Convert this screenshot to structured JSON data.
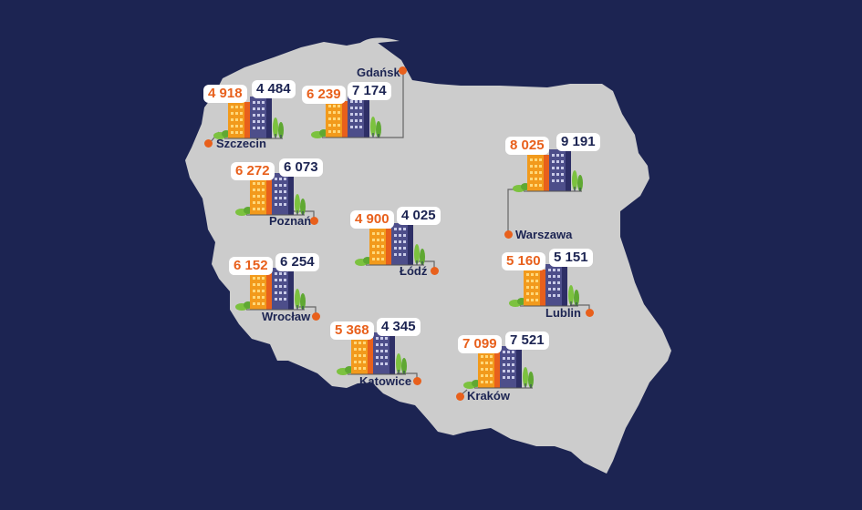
{
  "colors": {
    "background": "#1c2452",
    "land": "#cccccc",
    "accent_orange": "#e8601c",
    "building_orange": "#f29a1c",
    "building_navy": "#4d4e8a",
    "tree_green": "#7cc23f",
    "label_navy": "#1c2452"
  },
  "cities": [
    {
      "name": "Gdańsk",
      "orange": "6 239",
      "navy": "7 174"
    },
    {
      "name": "Szczecin",
      "orange": "4 918",
      "navy": "4 484"
    },
    {
      "name": "Poznań",
      "orange": "6 272",
      "navy": "6 073"
    },
    {
      "name": "Warszawa",
      "orange": "8 025",
      "navy": "9 191"
    },
    {
      "name": "Łódź",
      "orange": "4 900",
      "navy": "4 025"
    },
    {
      "name": "Wrocław",
      "orange": "6 152",
      "navy": "6 254"
    },
    {
      "name": "Lublin",
      "orange": "5 160",
      "navy": "5 151"
    },
    {
      "name": "Katowice",
      "orange": "5 368",
      "navy": "4 345"
    },
    {
      "name": "Kraków",
      "orange": "7 099",
      "navy": "7 521"
    }
  ]
}
